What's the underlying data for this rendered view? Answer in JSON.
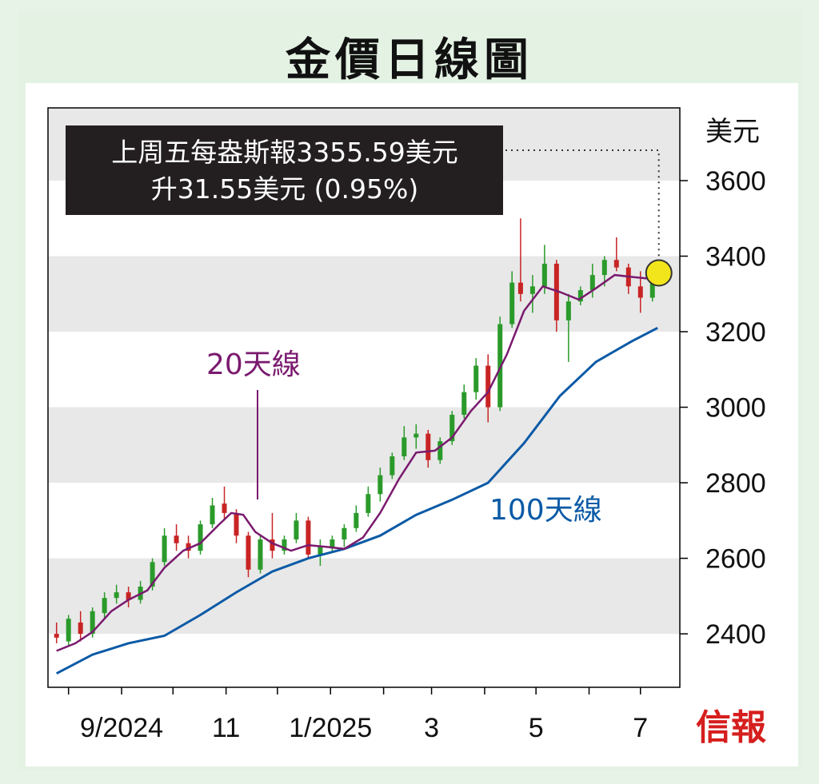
{
  "header": {
    "title": "金價日線圖"
  },
  "brand": {
    "logo_text": "信報"
  },
  "chart_data": {
    "type": "line",
    "title": "金價日線圖",
    "y_unit": "美元",
    "ylim": [
      2250,
      3600
    ],
    "y_ticks": [
      2400,
      2600,
      2800,
      3000,
      3200,
      3400,
      3600
    ],
    "x_tick_labels": [
      "9/2024",
      "11",
      "1/2025",
      "3",
      "5",
      "7"
    ],
    "grid": "alternating horizontal bands",
    "annotation": {
      "line1": "上周五每盎斯報3355.59美元",
      "line2": "升31.55美元 (0.95%)",
      "value": 3355.59
    },
    "series": [
      {
        "name": "20天線",
        "color": "#7a1a6e",
        "points": [
          [
            "2024-07-25",
            2355
          ],
          [
            "2024-08-05",
            2375
          ],
          [
            "2024-08-15",
            2405
          ],
          [
            "2024-08-26",
            2460
          ],
          [
            "2024-09-05",
            2490
          ],
          [
            "2024-09-16",
            2515
          ],
          [
            "2024-09-26",
            2575
          ],
          [
            "2024-10-07",
            2620
          ],
          [
            "2024-10-17",
            2640
          ],
          [
            "2024-10-28",
            2690
          ],
          [
            "2024-11-04",
            2720
          ],
          [
            "2024-11-11",
            2715
          ],
          [
            "2024-11-18",
            2670
          ],
          [
            "2024-11-28",
            2640
          ],
          [
            "2024-12-09",
            2620
          ],
          [
            "2024-12-19",
            2635
          ],
          [
            "2024-12-30",
            2630
          ],
          [
            "2025-01-09",
            2625
          ],
          [
            "2025-01-20",
            2655
          ],
          [
            "2025-01-30",
            2720
          ],
          [
            "2025-02-10",
            2810
          ],
          [
            "2025-02-20",
            2880
          ],
          [
            "2025-03-03",
            2885
          ],
          [
            "2025-03-13",
            2920
          ],
          [
            "2025-03-24",
            2990
          ],
          [
            "2025-04-03",
            3040
          ],
          [
            "2025-04-14",
            3140
          ],
          [
            "2025-04-24",
            3255
          ],
          [
            "2025-05-05",
            3320
          ],
          [
            "2025-05-15",
            3305
          ],
          [
            "2025-05-26",
            3285
          ],
          [
            "2025-06-05",
            3315
          ],
          [
            "2025-06-16",
            3350
          ],
          [
            "2025-06-26",
            3345
          ],
          [
            "2025-07-07",
            3340
          ],
          [
            "2025-07-11",
            3345
          ]
        ]
      },
      {
        "name": "100天線",
        "color": "#0b5aa6",
        "points": [
          [
            "2024-07-25",
            2295
          ],
          [
            "2024-08-15",
            2345
          ],
          [
            "2024-09-05",
            2375
          ],
          [
            "2024-09-26",
            2395
          ],
          [
            "2024-10-17",
            2450
          ],
          [
            "2024-11-07",
            2510
          ],
          [
            "2024-11-28",
            2565
          ],
          [
            "2024-12-19",
            2600
          ],
          [
            "2025-01-09",
            2625
          ],
          [
            "2025-01-30",
            2660
          ],
          [
            "2025-02-20",
            2715
          ],
          [
            "2025-03-13",
            2755
          ],
          [
            "2025-04-03",
            2800
          ],
          [
            "2025-04-24",
            2905
          ],
          [
            "2025-05-15",
            3030
          ],
          [
            "2025-06-05",
            3120
          ],
          [
            "2025-06-26",
            3175
          ],
          [
            "2025-07-11",
            3210
          ]
        ]
      },
      {
        "name": "",
        "type": "candlestick",
        "up_color": "#2a9a2a",
        "down_color": "#c82424",
        "candles": [
          [
            "2024-07-25",
            2400,
            2430,
            2375,
            2390
          ],
          [
            "2024-08-01",
            2380,
            2450,
            2370,
            2440
          ],
          [
            "2024-08-08",
            2430,
            2460,
            2380,
            2400
          ],
          [
            "2024-08-15",
            2400,
            2470,
            2390,
            2460
          ],
          [
            "2024-08-22",
            2455,
            2510,
            2440,
            2495
          ],
          [
            "2024-08-29",
            2495,
            2530,
            2480,
            2510
          ],
          [
            "2024-09-05",
            2510,
            2525,
            2470,
            2490
          ],
          [
            "2024-09-12",
            2490,
            2540,
            2480,
            2525
          ],
          [
            "2024-09-19",
            2525,
            2600,
            2515,
            2590
          ],
          [
            "2024-09-26",
            2590,
            2680,
            2580,
            2660
          ],
          [
            "2024-10-03",
            2660,
            2690,
            2620,
            2640
          ],
          [
            "2024-10-10",
            2640,
            2660,
            2600,
            2620
          ],
          [
            "2024-10-17",
            2620,
            2700,
            2610,
            2690
          ],
          [
            "2024-10-24",
            2690,
            2760,
            2680,
            2740
          ],
          [
            "2024-10-31",
            2745,
            2790,
            2700,
            2720
          ],
          [
            "2024-11-07",
            2720,
            2730,
            2640,
            2660
          ],
          [
            "2024-11-14",
            2660,
            2670,
            2550,
            2570
          ],
          [
            "2024-11-21",
            2570,
            2660,
            2560,
            2650
          ],
          [
            "2024-11-28",
            2650,
            2720,
            2600,
            2620
          ],
          [
            "2024-12-05",
            2620,
            2660,
            2610,
            2650
          ],
          [
            "2024-12-12",
            2650,
            2720,
            2640,
            2700
          ],
          [
            "2024-12-19",
            2700,
            2710,
            2600,
            2610
          ],
          [
            "2024-12-26",
            2610,
            2650,
            2580,
            2630
          ],
          [
            "2025-01-02",
            2630,
            2660,
            2615,
            2650
          ],
          [
            "2025-01-09",
            2650,
            2690,
            2630,
            2680
          ],
          [
            "2025-01-16",
            2680,
            2740,
            2670,
            2720
          ],
          [
            "2025-01-23",
            2720,
            2790,
            2710,
            2770
          ],
          [
            "2025-01-30",
            2770,
            2840,
            2750,
            2820
          ],
          [
            "2025-02-06",
            2820,
            2880,
            2810,
            2870
          ],
          [
            "2025-02-13",
            2870,
            2950,
            2860,
            2920
          ],
          [
            "2025-02-20",
            2920,
            2955,
            2890,
            2930
          ],
          [
            "2025-02-27",
            2930,
            2940,
            2840,
            2860
          ],
          [
            "2025-03-06",
            2860,
            2920,
            2850,
            2910
          ],
          [
            "2025-03-13",
            2910,
            2990,
            2900,
            2980
          ],
          [
            "2025-03-20",
            2980,
            3060,
            2970,
            3040
          ],
          [
            "2025-03-27",
            3040,
            3130,
            3020,
            3110
          ],
          [
            "2025-04-03",
            3110,
            3140,
            2960,
            3000
          ],
          [
            "2025-04-10",
            3000,
            3240,
            2990,
            3220
          ],
          [
            "2025-04-17",
            3220,
            3360,
            3210,
            3330
          ],
          [
            "2025-04-22",
            3330,
            3500,
            3280,
            3300
          ],
          [
            "2025-04-29",
            3300,
            3350,
            3250,
            3320
          ],
          [
            "2025-05-06",
            3320,
            3430,
            3300,
            3380
          ],
          [
            "2025-05-13",
            3380,
            3390,
            3200,
            3230
          ],
          [
            "2025-05-20",
            3230,
            3300,
            3120,
            3280
          ],
          [
            "2025-05-27",
            3280,
            3320,
            3270,
            3310
          ],
          [
            "2025-06-03",
            3310,
            3380,
            3290,
            3350
          ],
          [
            "2025-06-10",
            3350,
            3400,
            3320,
            3390
          ],
          [
            "2025-06-17",
            3390,
            3450,
            3360,
            3370
          ],
          [
            "2025-06-24",
            3370,
            3380,
            3300,
            3320
          ],
          [
            "2025-07-01",
            3320,
            3360,
            3250,
            3290
          ],
          [
            "2025-07-08",
            3290,
            3360,
            3280,
            3355
          ]
        ]
      }
    ]
  }
}
